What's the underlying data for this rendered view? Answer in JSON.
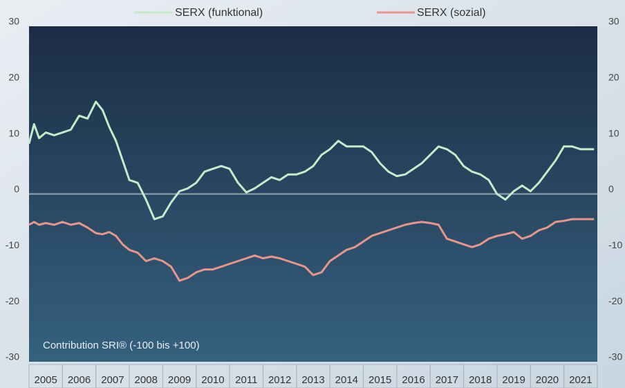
{
  "chart_data": {
    "type": "line",
    "annotation": "Contribution SRI® (-100 bis +100)",
    "categories": [
      "2005",
      "2006",
      "2007",
      "2008",
      "2009",
      "2010",
      "2011",
      "2012",
      "2013",
      "2014",
      "2015",
      "2016",
      "2017",
      "2018",
      "2019",
      "2020",
      "2021"
    ],
    "xlim": [
      2005,
      2022
    ],
    "ylim": [
      -30,
      30
    ],
    "yticks": [
      -30,
      -20,
      -10,
      0,
      10,
      20,
      30
    ],
    "y2lim": [
      -30,
      30
    ],
    "y2ticks": [
      -30,
      -20,
      -10,
      0,
      10,
      20,
      30
    ],
    "x": [
      2005.0,
      2005.15,
      2005.3,
      2005.5,
      2005.75,
      2006.0,
      2006.25,
      2006.5,
      2006.75,
      2007.0,
      2007.2,
      2007.4,
      2007.6,
      2007.8,
      2008.0,
      2008.25,
      2008.5,
      2008.75,
      2009.0,
      2009.25,
      2009.5,
      2009.75,
      2010.0,
      2010.25,
      2010.5,
      2010.75,
      2011.0,
      2011.25,
      2011.5,
      2011.75,
      2012.0,
      2012.25,
      2012.5,
      2012.75,
      2013.0,
      2013.25,
      2013.5,
      2013.75,
      2014.0,
      2014.25,
      2014.5,
      2014.75,
      2015.0,
      2015.25,
      2015.5,
      2015.75,
      2016.0,
      2016.25,
      2016.5,
      2016.75,
      2017.0,
      2017.25,
      2017.5,
      2017.75,
      2018.0,
      2018.25,
      2018.5,
      2018.75,
      2019.0,
      2019.25,
      2019.5,
      2019.75,
      2020.0,
      2020.25,
      2020.5,
      2020.75,
      2021.0,
      2021.25,
      2021.5,
      2021.9
    ],
    "series": [
      {
        "name": "SERX (funktional)",
        "color": "#c4ecc8",
        "values": [
          9,
          12.5,
          10,
          11,
          10.5,
          11,
          11.5,
          14,
          13.5,
          16.5,
          15,
          12,
          9.5,
          6,
          2.5,
          2,
          -1,
          -4.5,
          -4,
          -1.5,
          0.5,
          1,
          2,
          4,
          4.5,
          5,
          4.5,
          2,
          0.3,
          1,
          2,
          3,
          2.5,
          3.5,
          3.5,
          4,
          5,
          7,
          8,
          9.5,
          8.5,
          8.5,
          8.5,
          7.5,
          5.5,
          4,
          3.2,
          3.5,
          4.5,
          5.5,
          7,
          8.5,
          8,
          7,
          5,
          4,
          3.5,
          2.5,
          0,
          -1,
          0.5,
          1.5,
          0.5,
          2,
          4,
          6,
          8.5,
          8.5,
          8,
          8
        ]
      },
      {
        "name": "SERX (sozial)",
        "color": "#e8958a",
        "values": [
          -5.5,
          -5,
          -5.5,
          -5.2,
          -5.5,
          -5,
          -5.5,
          -5.2,
          -6,
          -7,
          -7.2,
          -6.8,
          -7.5,
          -9,
          -10,
          -10.5,
          -12,
          -11.5,
          -12,
          -13,
          -15.5,
          -15,
          -14,
          -13.5,
          -13.5,
          -13,
          -12.5,
          -12,
          -11.5,
          -11,
          -11.5,
          -11.2,
          -11.5,
          -12,
          -12.5,
          -13,
          -14.5,
          -14,
          -12,
          -11,
          -10,
          -9.5,
          -8.5,
          -7.5,
          -7,
          -6.5,
          -6,
          -5.5,
          -5.2,
          -5,
          -5.2,
          -5.5,
          -8,
          -8.5,
          -9,
          -9.5,
          -9,
          -8,
          -7.5,
          -7.2,
          -6.8,
          -8,
          -7.5,
          -6.5,
          -6,
          -5,
          -4.8,
          -4.5,
          -4.5,
          -4.5
        ]
      }
    ]
  }
}
